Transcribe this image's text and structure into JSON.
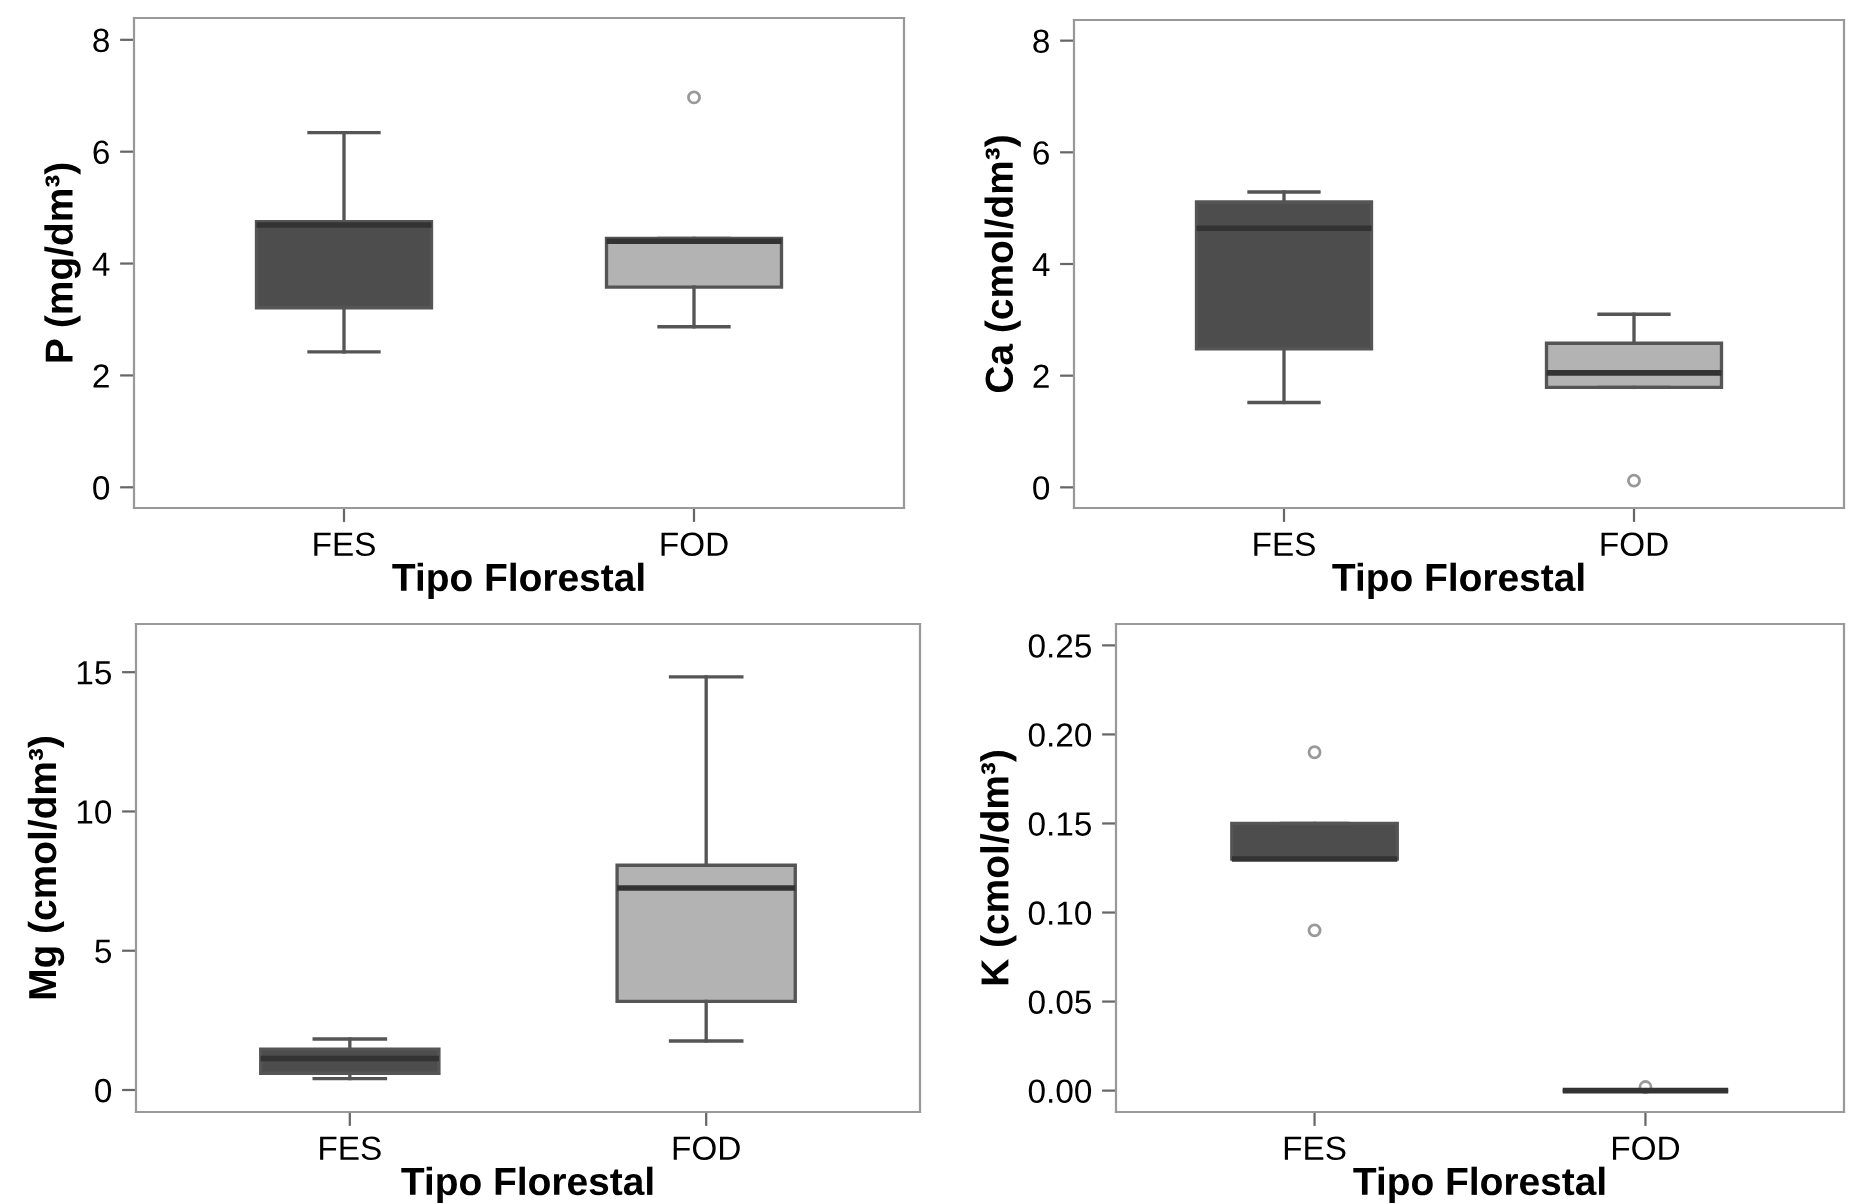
{
  "chart_data": [
    {
      "type": "box",
      "xlabel": "Tipo Florestal",
      "ylabel": "P (mg/dm³)",
      "categories": [
        "FES",
        "FOD"
      ],
      "colors": [
        "#4d4d4d",
        "#b3b3b3"
      ],
      "ylim": [
        -0.37,
        8.39
      ],
      "yticks": [
        0,
        2,
        4,
        6,
        8
      ],
      "grid": false,
      "legend": false,
      "boxes": [
        {
          "low": 2.42,
          "q1": 3.21,
          "median": 4.69,
          "q3": 4.75,
          "high": 6.34
        },
        {
          "low": 2.87,
          "q1": 3.58,
          "median": 4.4,
          "q3": 4.45,
          "high": 4.45,
          "outliers": [
            6.97
          ]
        }
      ]
    },
    {
      "type": "box",
      "xlabel": "Tipo Florestal",
      "ylabel": "Ca (cmol/dm³)",
      "categories": [
        "FES",
        "FOD"
      ],
      "colors": [
        "#4d4d4d",
        "#b3b3b3"
      ],
      "ylim": [
        -0.37,
        8.37
      ],
      "yticks": [
        0,
        2,
        4,
        6,
        8
      ],
      "grid": false,
      "legend": false,
      "boxes": [
        {
          "low": 1.52,
          "q1": 2.48,
          "median": 4.64,
          "q3": 5.11,
          "high": 5.29
        },
        {
          "low": 1.79,
          "q1": 1.79,
          "median": 2.05,
          "q3": 2.58,
          "high": 3.1,
          "outliers": [
            0.12
          ]
        }
      ]
    },
    {
      "type": "box",
      "xlabel": "Tipo Florestal",
      "ylabel": "Mg (cmol/dm³)",
      "categories": [
        "FES",
        "FOD"
      ],
      "colors": [
        "#4d4d4d",
        "#b3b3b3"
      ],
      "ylim": [
        -0.79,
        16.73
      ],
      "yticks": [
        0,
        5,
        10,
        15
      ],
      "grid": false,
      "legend": false,
      "boxes": [
        {
          "low": 0.41,
          "q1": 0.6,
          "median": 1.13,
          "q3": 1.47,
          "high": 1.83
        },
        {
          "low": 1.76,
          "q1": 3.18,
          "median": 7.25,
          "q3": 8.07,
          "high": 14.83
        }
      ]
    },
    {
      "type": "box",
      "xlabel": "Tipo Florestal",
      "ylabel": "K (cmol/dm³)",
      "categories": [
        "FES",
        "FOD"
      ],
      "colors": [
        "#4d4d4d",
        "#555555"
      ],
      "ylim": [
        -0.012,
        0.262
      ],
      "yticks": [
        {
          "value": 0,
          "label": "0.00"
        },
        {
          "value": 0.05,
          "label": "0.05"
        },
        {
          "value": 0.1,
          "label": "0.10"
        },
        {
          "value": 0.15,
          "label": "0.15"
        },
        {
          "value": 0.2,
          "label": "0.20"
        },
        {
          "value": 0.25,
          "label": "0.25"
        }
      ],
      "grid": false,
      "legend": false,
      "boxes": [
        {
          "low": 0.13,
          "q1": 0.13,
          "median": 0.13,
          "q3": 0.15,
          "high": 0.15,
          "outliers": [
            0.19,
            0.09
          ]
        },
        {
          "low": 0,
          "q1": 0,
          "median": 0,
          "q3": 0,
          "high": 0,
          "outliers": [
            0.002
          ]
        }
      ]
    }
  ]
}
